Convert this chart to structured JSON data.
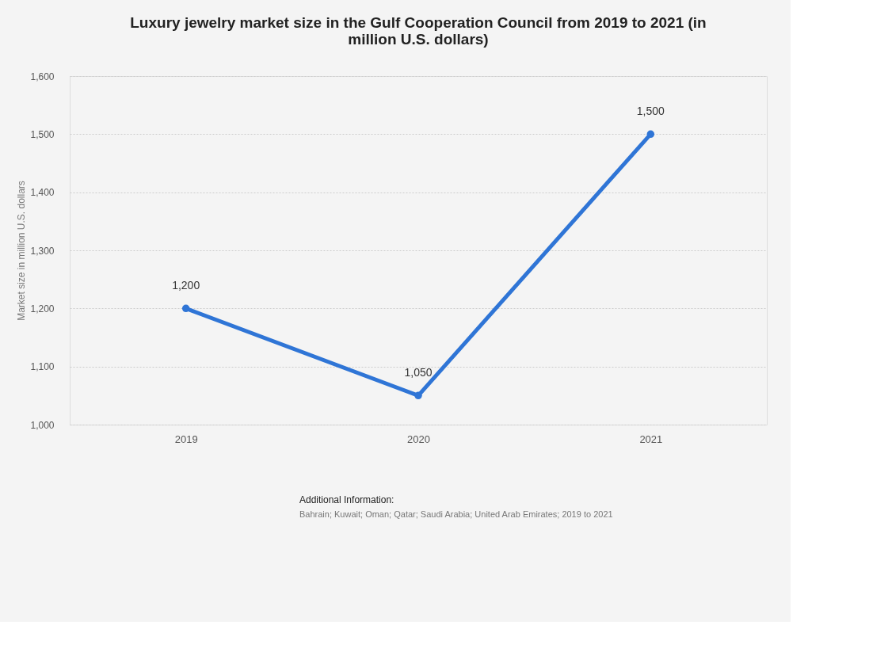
{
  "chart_data": {
    "type": "line",
    "title": "Luxury jewelry market size in the Gulf Cooperation Council from 2019 to 2021 (in million U.S. dollars)",
    "ylabel": "Market size in million U.S. dollars",
    "categories": [
      "2019",
      "2020",
      "2021"
    ],
    "series": [
      {
        "color": "#2f75d6",
        "values": [
          1200,
          1050,
          1500
        ],
        "value_labels": [
          "1,200",
          "1,050",
          "1,500"
        ]
      }
    ],
    "ylim": [
      1000,
      1600
    ],
    "yticks": [
      {
        "value": 1000,
        "label": "1,000"
      },
      {
        "value": 1100,
        "label": "1,100"
      },
      {
        "value": 1200,
        "label": "1,200"
      },
      {
        "value": 1300,
        "label": "1,300"
      },
      {
        "value": 1400,
        "label": "1,400"
      },
      {
        "value": 1500,
        "label": "1,500"
      },
      {
        "value": 1600,
        "label": "1,600"
      }
    ],
    "grid": "y",
    "marker": "circle",
    "line_style": "solid",
    "annotations": [
      "Additional Information:",
      "Bahrain; Kuwait; Oman; Qatar; Saudi Arabia; United Arab Emirates; 2019 to 2021"
    ]
  }
}
